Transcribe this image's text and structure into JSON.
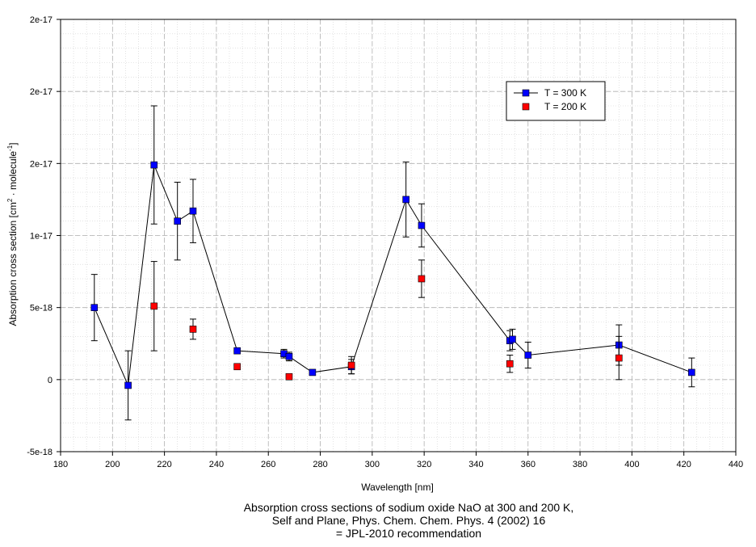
{
  "chart_data": {
    "type": "scatter",
    "xlabel": "Wavelength [nm]",
    "ylabel_main": "Absorption cross section [cm",
    "ylabel_sup1": "2",
    "ylabel_mid": " · molecule",
    "ylabel_sup2": "-1",
    "ylabel_end": "]",
    "xlim": [
      180,
      440
    ],
    "ylim": [
      -5e-18,
      2.5e-17
    ],
    "x_ticks": [
      180,
      200,
      220,
      240,
      260,
      280,
      300,
      320,
      340,
      360,
      380,
      400,
      420,
      440
    ],
    "x_tick_labels": [
      "180",
      "200",
      "220",
      "240",
      "260",
      "280",
      "300",
      "320",
      "340",
      "360",
      "380",
      "400",
      "420",
      "440"
    ],
    "y_ticks": [
      -5e-18,
      0,
      5e-18,
      1e-17,
      1.5e-17,
      2e-17,
      2.5e-17
    ],
    "y_tick_labels": [
      "-5e-18",
      "0",
      "5e-18",
      "1e-17",
      "2e-17",
      "2e-17",
      "2e-17"
    ],
    "grid": true,
    "legend_position": "top-right",
    "series": [
      {
        "name": "T = 300 K",
        "color": "#0000ff",
        "connected": true,
        "points": [
          {
            "x": 193,
            "y": 5e-18,
            "err": 2.3e-18
          },
          {
            "x": 206,
            "y": -4e-19,
            "err": 2.4e-18
          },
          {
            "x": 216,
            "y": 1.49e-17,
            "err": 4.1e-18
          },
          {
            "x": 225,
            "y": 1.1e-17,
            "err": 2.7e-18
          },
          {
            "x": 231,
            "y": 1.17e-17,
            "err": 2.2e-18
          },
          {
            "x": 248,
            "y": 2e-18,
            "err": 0
          },
          {
            "x": 266,
            "y": 1.8e-18,
            "err": 3e-19
          },
          {
            "x": 268,
            "y": 1.6e-18,
            "err": 3e-19
          },
          {
            "x": 277,
            "y": 5e-19,
            "err": 0
          },
          {
            "x": 292,
            "y": 9e-19,
            "err": 5e-19
          },
          {
            "x": 313,
            "y": 1.25e-17,
            "err": 2.6e-18
          },
          {
            "x": 319,
            "y": 1.07e-17,
            "err": 1.5e-18
          },
          {
            "x": 353,
            "y": 2.7e-18,
            "err": 7e-19
          },
          {
            "x": 354,
            "y": 2.8e-18,
            "err": 7e-19
          },
          {
            "x": 360,
            "y": 1.7e-18,
            "err": 9e-19
          },
          {
            "x": 395,
            "y": 2.4e-18,
            "err": 1.4e-18
          },
          {
            "x": 423,
            "y": 5e-19,
            "err": 1e-18
          }
        ]
      },
      {
        "name": "T = 200 K",
        "color": "#ff0000",
        "connected": false,
        "points": [
          {
            "x": 216,
            "y": 5.1e-18,
            "err": 3.1e-18
          },
          {
            "x": 231,
            "y": 3.5e-18,
            "err": 7e-19
          },
          {
            "x": 248,
            "y": 9e-19,
            "err": 0
          },
          {
            "x": 268,
            "y": 2e-19,
            "err": 0
          },
          {
            "x": 292,
            "y": 1e-18,
            "err": 6e-19
          },
          {
            "x": 319,
            "y": 7e-18,
            "err": 1.3e-18
          },
          {
            "x": 353,
            "y": 1.1e-18,
            "err": 6e-19
          },
          {
            "x": 395,
            "y": 1.5e-18,
            "err": 1.5e-18
          }
        ]
      }
    ]
  },
  "caption": {
    "line1": "Absorption cross sections of sodium oxide NaO at 300 and 200 K,",
    "line2": "Self and Plane, Phys. Chem. Chem. Phys. 4 (2002) 16",
    "line3": "= JPL-2010 recommendation"
  }
}
